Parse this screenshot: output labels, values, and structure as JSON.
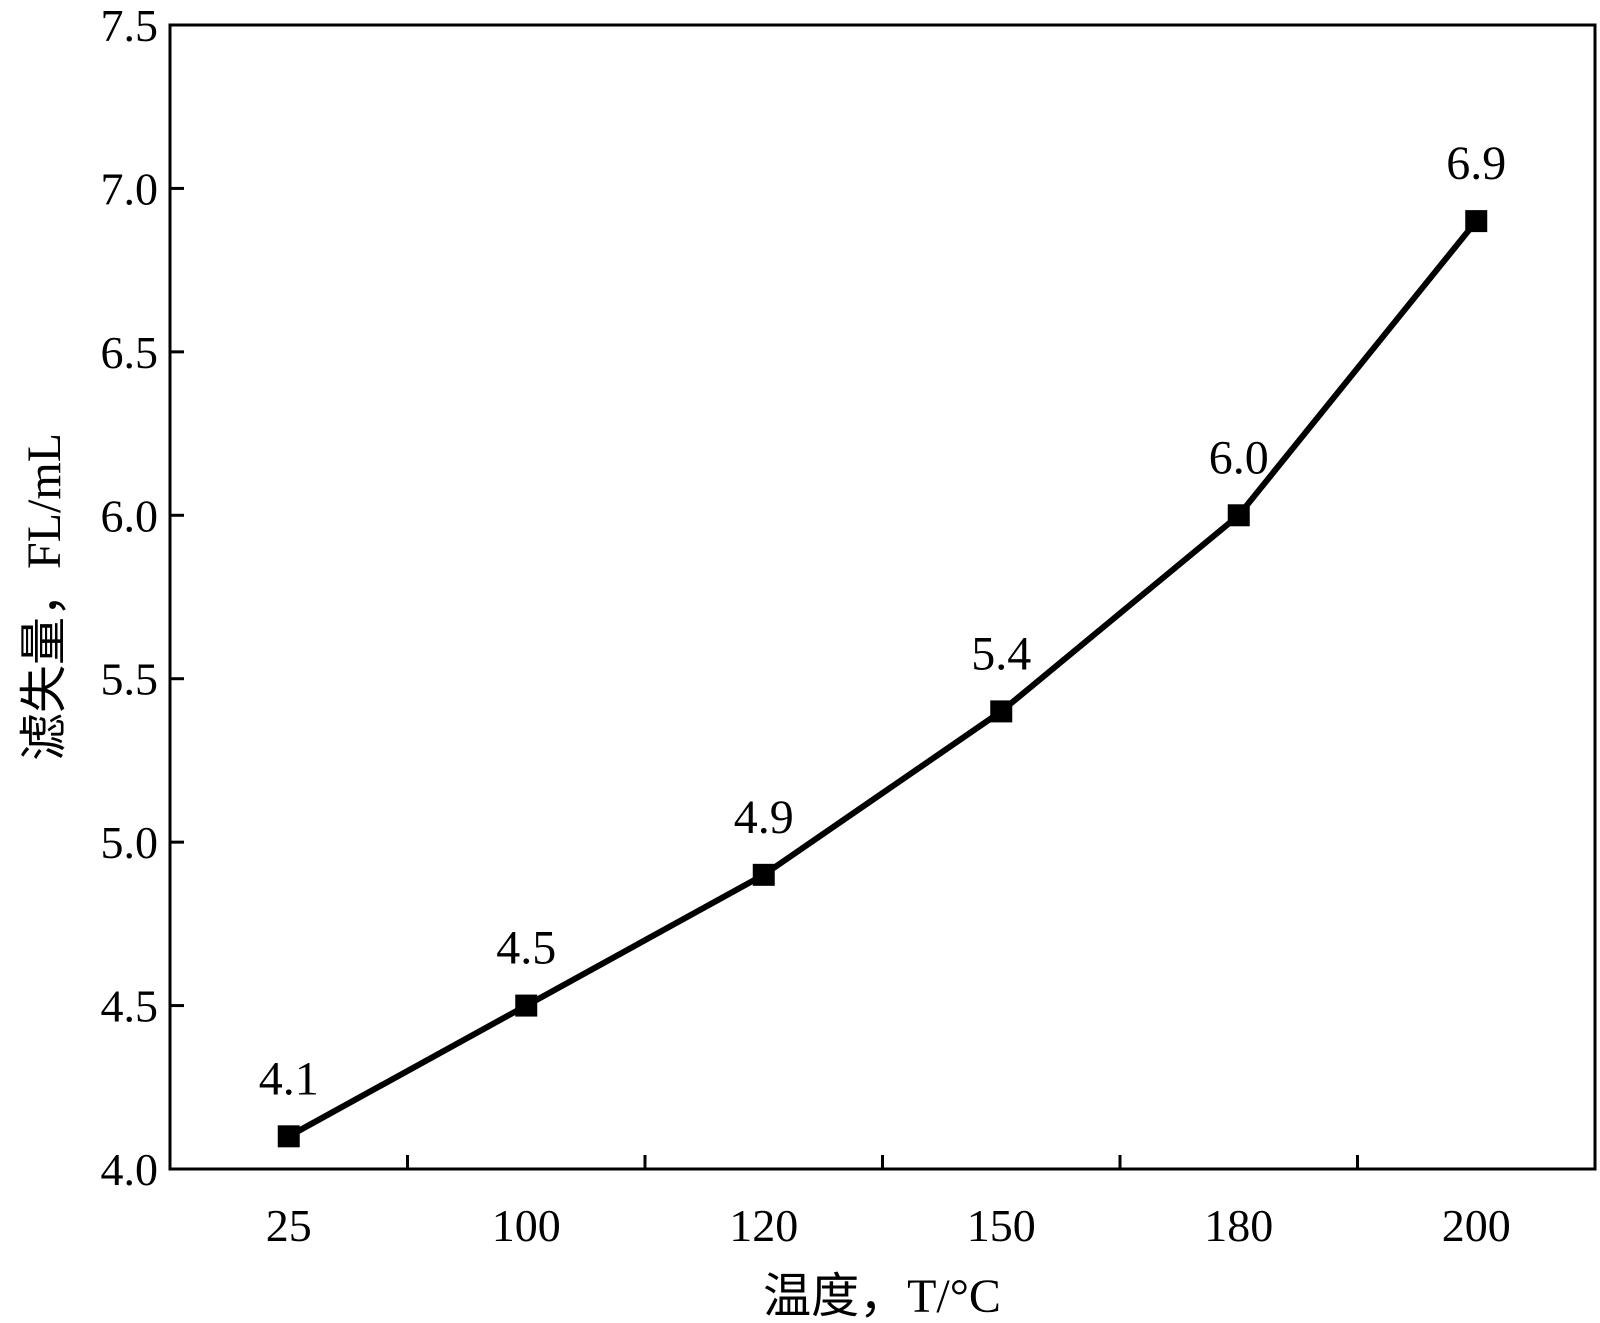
{
  "chart_data": {
    "type": "line",
    "categories": [
      "25",
      "100",
      "120",
      "150",
      "180",
      "200"
    ],
    "series": [
      {
        "values": [
          4.1,
          4.5,
          4.9,
          5.4,
          6.0,
          6.9
        ]
      }
    ],
    "data_labels": [
      "4.1",
      "4.5",
      "4.9",
      "5.4",
      "6.0",
      "6.9"
    ],
    "xlabel": "温度，T/°C",
    "ylabel": "滤失量，FL/mL",
    "ylim": [
      4.0,
      7.5
    ],
    "yticks": [
      "4.0",
      "4.5",
      "5.0",
      "5.5",
      "6.0",
      "6.5",
      "7.0",
      "7.5"
    ],
    "marker": "square",
    "line_color": "#000000",
    "marker_color": "#000000",
    "grid": false,
    "legend": "none"
  }
}
